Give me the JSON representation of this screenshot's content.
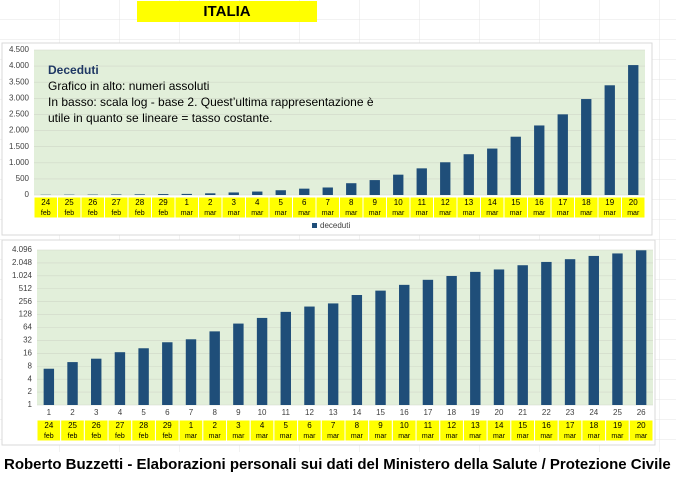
{
  "header": {
    "title": "ITALIA"
  },
  "chart_data": [
    {
      "type": "bar",
      "log_base": null,
      "note": {
        "heading": "Deceduti",
        "lines": [
          "Grafico in alto: numeri assoluti",
          "In basso: scala log - base 2. Quest’ultima rappresentazione è",
          "utile in quanto se lineare = tasso costante."
        ]
      },
      "categories": [
        [
          "24",
          "feb"
        ],
        [
          "25",
          "feb"
        ],
        [
          "26",
          "feb"
        ],
        [
          "27",
          "feb"
        ],
        [
          "28",
          "feb"
        ],
        [
          "29",
          "feb"
        ],
        [
          "1",
          "mar"
        ],
        [
          "2",
          "mar"
        ],
        [
          "3",
          "mar"
        ],
        [
          "4",
          "mar"
        ],
        [
          "5",
          "mar"
        ],
        [
          "6",
          "mar"
        ],
        [
          "7",
          "mar"
        ],
        [
          "8",
          "mar"
        ],
        [
          "9",
          "mar"
        ],
        [
          "10",
          "mar"
        ],
        [
          "11",
          "mar"
        ],
        [
          "12",
          "mar"
        ],
        [
          "13",
          "mar"
        ],
        [
          "14",
          "mar"
        ],
        [
          "15",
          "mar"
        ],
        [
          "16",
          "mar"
        ],
        [
          "17",
          "mar"
        ],
        [
          "18",
          "mar"
        ],
        [
          "19",
          "mar"
        ],
        [
          "20",
          "mar"
        ]
      ],
      "series": [
        {
          "name": "deceduti",
          "color": "#1f4e79",
          "values": [
            7,
            10,
            12,
            17,
            21,
            29,
            34,
            52,
            79,
            107,
            148,
            197,
            233,
            366,
            463,
            631,
            827,
            1016,
            1266,
            1441,
            1809,
            2158,
            2503,
            2978,
            3405,
            4032
          ]
        }
      ],
      "ylim": [
        0,
        4500
      ],
      "yticks": [
        0,
        500,
        {
          "value": 1000,
          "label": "1.000"
        },
        {
          "value": 1500,
          "label": "1.500"
        },
        {
          "value": 2000,
          "label": "2.000"
        },
        {
          "value": 2500,
          "label": "2.500"
        },
        {
          "value": 3000,
          "label": "3.000"
        },
        {
          "value": 3500,
          "label": "3.500"
        },
        {
          "value": 4000,
          "label": "4.000"
        },
        {
          "value": 4500,
          "label": "4.500"
        }
      ],
      "grid": true,
      "legend": "bottom"
    },
    {
      "type": "bar",
      "log_base": 2,
      "x_index": [
        1,
        2,
        3,
        4,
        5,
        6,
        7,
        8,
        9,
        10,
        11,
        12,
        13,
        14,
        15,
        16,
        17,
        18,
        19,
        20,
        21,
        22,
        23,
        24,
        25,
        26
      ],
      "categories": [
        [
          "24",
          "feb"
        ],
        [
          "25",
          "feb"
        ],
        [
          "26",
          "feb"
        ],
        [
          "27",
          "feb"
        ],
        [
          "28",
          "feb"
        ],
        [
          "29",
          "feb"
        ],
        [
          "1",
          "mar"
        ],
        [
          "2",
          "mar"
        ],
        [
          "3",
          "mar"
        ],
        [
          "4",
          "mar"
        ],
        [
          "5",
          "mar"
        ],
        [
          "6",
          "mar"
        ],
        [
          "7",
          "mar"
        ],
        [
          "8",
          "mar"
        ],
        [
          "9",
          "mar"
        ],
        [
          "10",
          "mar"
        ],
        [
          "11",
          "mar"
        ],
        [
          "12",
          "mar"
        ],
        [
          "13",
          "mar"
        ],
        [
          "14",
          "mar"
        ],
        [
          "15",
          "mar"
        ],
        [
          "16",
          "mar"
        ],
        [
          "17",
          "mar"
        ],
        [
          "18",
          "mar"
        ],
        [
          "19",
          "mar"
        ],
        [
          "20",
          "mar"
        ]
      ],
      "series": [
        {
          "name": "deceduti",
          "color": "#1f4e79",
          "values": [
            7,
            10,
            12,
            17,
            21,
            29,
            34,
            52,
            79,
            107,
            148,
            197,
            233,
            366,
            463,
            631,
            827,
            1016,
            1266,
            1441,
            1809,
            2158,
            2503,
            2978,
            3405,
            4032
          ]
        }
      ],
      "ylim": [
        1,
        4096
      ],
      "yticks": [
        1,
        2,
        4,
        8,
        16,
        32,
        64,
        128,
        256,
        512,
        {
          "value": 1024,
          "label": "1.024"
        },
        {
          "value": 2048,
          "label": "2.048"
        },
        {
          "value": 4096,
          "label": "4.096"
        }
      ],
      "grid": true,
      "legend": null
    }
  ],
  "footer": {
    "text": "Roberto Buzzetti - Elaborazioni personali sui dati del Ministero della Salute / Protezione Civile"
  }
}
